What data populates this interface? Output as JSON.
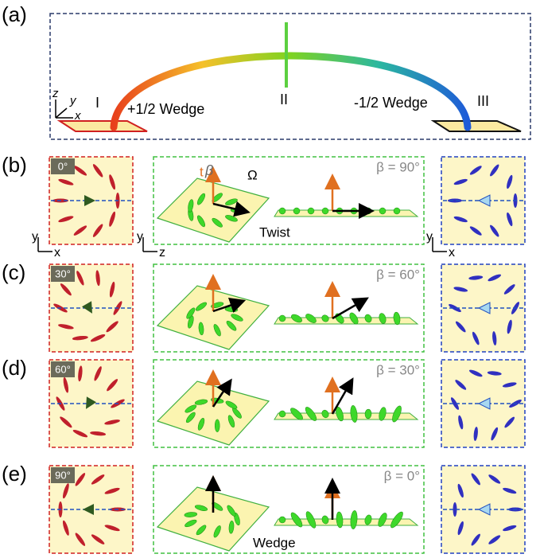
{
  "panel_a": {
    "label": "(a)",
    "axes": [
      "z",
      "y",
      "x"
    ],
    "points": [
      "I",
      "II",
      "III"
    ],
    "left_defect": "+1/2 Wedge",
    "right_defect": "-1/2 Wedge"
  },
  "rows": [
    {
      "label": "(b)",
      "angle": "0°",
      "beta": "β = 90°"
    },
    {
      "label": "(c)",
      "angle": "30°",
      "beta": "β = 60°"
    },
    {
      "label": "(d)",
      "angle": "60°",
      "beta": "β = 30°"
    },
    {
      "label": "(e)",
      "angle": "90°",
      "beta": "β = 0°"
    }
  ],
  "annotations": {
    "t": "t",
    "beta": "β",
    "omega": "Ω",
    "twist": "Twist",
    "wedge": "Wedge"
  },
  "frames": {
    "left": [
      "y",
      "x"
    ],
    "middle": [
      "y",
      "z"
    ],
    "right": [
      "y",
      "x"
    ]
  }
}
